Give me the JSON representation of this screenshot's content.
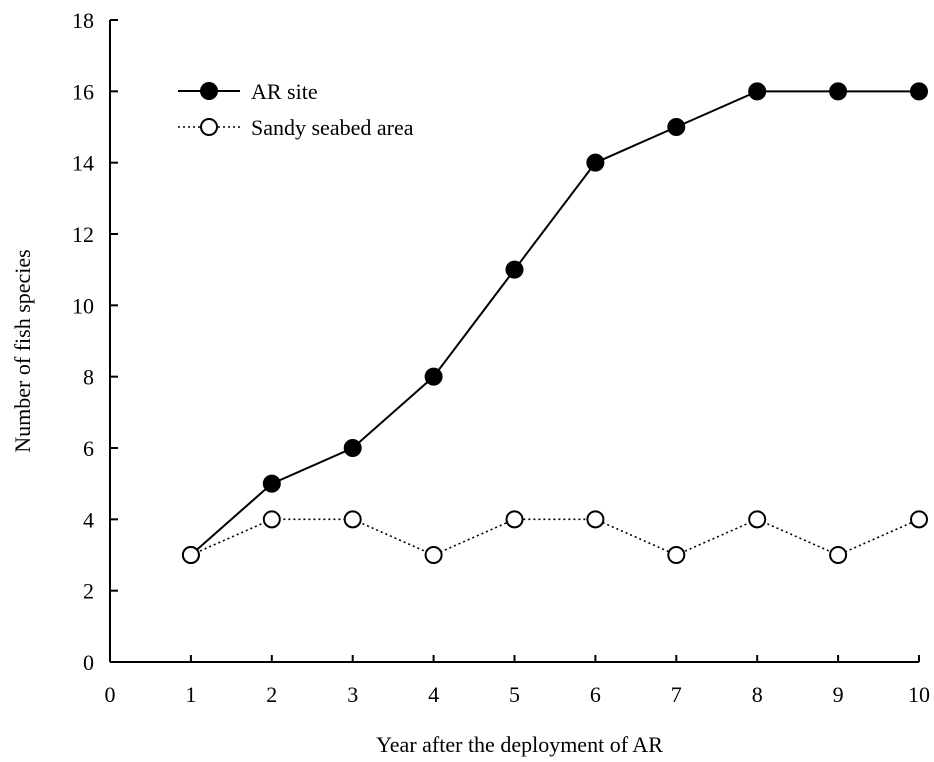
{
  "chart_data": {
    "type": "line",
    "title": "",
    "xlabel": "Year after the deployment of AR",
    "ylabel": "Number of fish species",
    "xlim": [
      0,
      10
    ],
    "ylim": [
      0,
      18
    ],
    "xticks": [
      0,
      1,
      2,
      3,
      4,
      5,
      6,
      7,
      8,
      9,
      10
    ],
    "yticks": [
      0,
      2,
      4,
      6,
      8,
      10,
      12,
      14,
      16,
      18
    ],
    "grid": false,
    "legend_position": "top-left",
    "x": [
      1,
      2,
      3,
      4,
      5,
      6,
      7,
      8,
      9,
      10
    ],
    "series": [
      {
        "name": "AR site",
        "marker": "filled-circle",
        "line_style": "solid",
        "color": "#000000",
        "values": [
          3,
          5,
          6,
          8,
          11,
          14,
          15,
          16,
          16,
          16
        ]
      },
      {
        "name": "Sandy seabed area",
        "marker": "open-circle",
        "line_style": "dotted",
        "color": "#000000",
        "values": [
          3,
          4,
          4,
          3,
          4,
          4,
          3,
          4,
          3,
          4
        ]
      }
    ]
  }
}
